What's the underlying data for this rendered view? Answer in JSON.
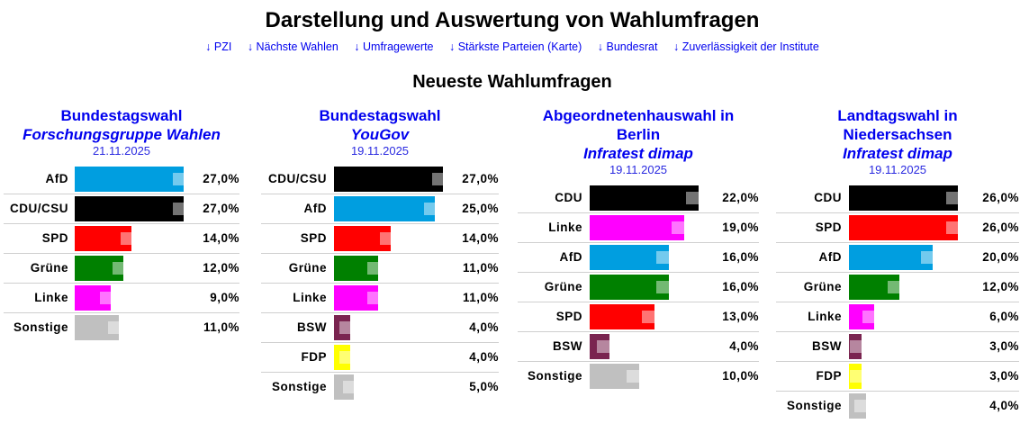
{
  "header": {
    "title": "Darstellung und Auswertung von Wahlumfragen",
    "nav": [
      {
        "label": "↓ PZI"
      },
      {
        "label": "↓ Nächste Wahlen"
      },
      {
        "label": "↓ Umfragewerte"
      },
      {
        "label": "↓ Stärkste Parteien (Karte)"
      },
      {
        "label": "↓ Bundesrat"
      },
      {
        "label": "↓ Zuverlässigkeit der Institute"
      }
    ],
    "section_title": "Neueste Wahlumfragen"
  },
  "colors": {
    "AfD": "#009ee0",
    "CDU/CSU": "#000000",
    "CDU": "#000000",
    "SPD": "#ff0000",
    "Grüne": "#008000",
    "Linke": "#ff00ff",
    "BSW": "#7a2450",
    "FDP": "#ffff00",
    "Sonstige": "#c0c0c0"
  },
  "chart_data": [
    {
      "type": "bar",
      "title": "Bundestagswahl",
      "title_lines": [
        "Bundestagswahl"
      ],
      "institute": "Forschungsgruppe Wahlen",
      "date": "21.11.2025",
      "categories": [
        "AfD",
        "CDU/CSU",
        "SPD",
        "Grüne",
        "Linke",
        "Sonstige"
      ],
      "values": [
        27.0,
        27.0,
        14.0,
        12.0,
        9.0,
        11.0
      ],
      "labels": [
        "27,0%",
        "27,0%",
        "14,0%",
        "12,0%",
        "9,0%",
        "11,0%"
      ],
      "unit": "%"
    },
    {
      "type": "bar",
      "title": "Bundestagswahl",
      "title_lines": [
        "Bundestagswahl"
      ],
      "institute": "YouGov",
      "date": "19.11.2025",
      "categories": [
        "CDU/CSU",
        "AfD",
        "SPD",
        "Grüne",
        "Linke",
        "BSW",
        "FDP",
        "Sonstige"
      ],
      "values": [
        27.0,
        25.0,
        14.0,
        11.0,
        11.0,
        4.0,
        4.0,
        5.0
      ],
      "labels": [
        "27,0%",
        "25,0%",
        "14,0%",
        "11,0%",
        "11,0%",
        "4,0%",
        "4,0%",
        "5,0%"
      ],
      "unit": "%"
    },
    {
      "type": "bar",
      "title": "Abgeordnetenhauswahl in Berlin",
      "title_lines": [
        "Abgeordnetenhauswahl in",
        "Berlin"
      ],
      "institute": "Infratest dimap",
      "date": "19.11.2025",
      "categories": [
        "CDU",
        "Linke",
        "AfD",
        "Grüne",
        "SPD",
        "BSW",
        "Sonstige"
      ],
      "values": [
        22.0,
        19.0,
        16.0,
        16.0,
        13.0,
        4.0,
        10.0
      ],
      "labels": [
        "22,0%",
        "19,0%",
        "16,0%",
        "16,0%",
        "13,0%",
        "4,0%",
        "10,0%"
      ],
      "unit": "%"
    },
    {
      "type": "bar",
      "title": "Landtagswahl in Niedersachsen",
      "title_lines": [
        "Landtagswahl in",
        "Niedersachsen"
      ],
      "institute": "Infratest dimap",
      "date": "19.11.2025",
      "categories": [
        "CDU",
        "SPD",
        "AfD",
        "Grüne",
        "Linke",
        "BSW",
        "FDP",
        "Sonstige"
      ],
      "values": [
        26.0,
        26.0,
        20.0,
        12.0,
        6.0,
        3.0,
        3.0,
        4.0
      ],
      "labels": [
        "26,0%",
        "26,0%",
        "20,0%",
        "12,0%",
        "6,0%",
        "3,0%",
        "3,0%",
        "4,0%"
      ],
      "unit": "%"
    }
  ]
}
